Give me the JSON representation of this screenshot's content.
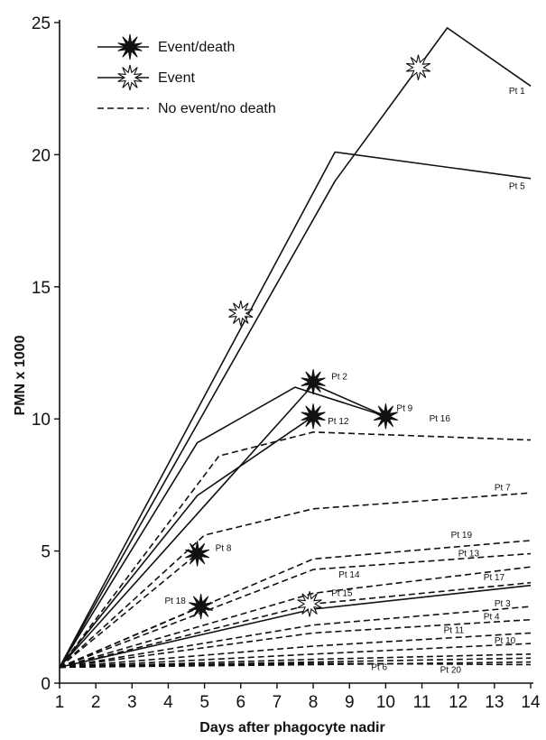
{
  "chart_data": {
    "type": "line",
    "title": "",
    "xlabel": "Days after phagocyte nadir",
    "ylabel": "PMN x 1000",
    "xlim": [
      1,
      14
    ],
    "ylim": [
      0,
      25
    ],
    "x_ticks": [
      1,
      2,
      3,
      4,
      5,
      6,
      7,
      8,
      9,
      10,
      11,
      12,
      13,
      14
    ],
    "y_ticks": [
      0,
      5,
      10,
      15,
      20,
      25
    ],
    "grid": false,
    "legend_position": "top-left",
    "legend": [
      {
        "label": "Event/death",
        "line": "solid",
        "marker": "filled-burst"
      },
      {
        "label": "Event",
        "line": "solid",
        "marker": "open-burst"
      },
      {
        "label": "No event/no death",
        "line": "dashed",
        "marker": "none"
      }
    ],
    "series": [
      {
        "name": "Pt 1",
        "style": "solid",
        "points": [
          [
            1,
            0.6
          ],
          [
            8.6,
            19.0
          ],
          [
            11.7,
            24.8
          ],
          [
            14,
            22.6
          ]
        ],
        "label_at": [
          13.4,
          22.3
        ]
      },
      {
        "name": "Pt 5",
        "style": "solid",
        "points": [
          [
            1,
            0.6
          ],
          [
            8.6,
            20.1
          ],
          [
            14,
            19.1
          ]
        ],
        "label_at": [
          13.4,
          18.7
        ]
      },
      {
        "name": "Pt 2",
        "style": "solid",
        "points": [
          [
            1,
            0.6
          ],
          [
            4.8,
            9.1
          ],
          [
            7.5,
            11.2
          ],
          [
            10,
            10.1
          ]
        ],
        "label_at": [
          8.5,
          11.5
        ]
      },
      {
        "name": "Pt 9",
        "style": "solid",
        "points": [
          [
            1,
            0.6
          ],
          [
            8,
            11.3
          ],
          [
            10,
            10.1
          ]
        ],
        "label_at": [
          10.3,
          10.3
        ]
      },
      {
        "name": "Pt 12",
        "style": "solid",
        "points": [
          [
            1,
            0.6
          ],
          [
            4.8,
            7.1
          ],
          [
            8,
            10.1
          ]
        ],
        "label_at": [
          8.4,
          9.8
        ]
      },
      {
        "name": "Pt 16",
        "style": "dashed",
        "points": [
          [
            1,
            0.6
          ],
          [
            5.4,
            8.6
          ],
          [
            8,
            9.5
          ],
          [
            14,
            9.2
          ]
        ],
        "label_at": [
          11.2,
          9.9
        ]
      },
      {
        "name": "Pt 7",
        "style": "dashed",
        "points": [
          [
            1,
            0.6
          ],
          [
            5,
            5.6
          ],
          [
            8,
            6.6
          ],
          [
            14,
            7.2
          ]
        ],
        "label_at": [
          13.0,
          7.3
        ]
      },
      {
        "name": "Pt 8",
        "style": "dashed",
        "points": [
          [
            1,
            0.6
          ],
          [
            4.8,
            4.9
          ]
        ],
        "label_at": [
          5.3,
          5.0
        ]
      },
      {
        "name": "Pt 19",
        "style": "dashed",
        "points": [
          [
            1,
            0.6
          ],
          [
            8,
            4.7
          ],
          [
            14,
            5.4
          ]
        ],
        "label_at": [
          11.8,
          5.5
        ]
      },
      {
        "name": "Pt 13",
        "style": "dashed",
        "points": [
          [
            1,
            0.6
          ],
          [
            8,
            4.3
          ],
          [
            14,
            4.9
          ]
        ],
        "label_at": [
          12.0,
          4.8
        ]
      },
      {
        "name": "Pt 14",
        "style": "dashed",
        "points": [
          [
            1,
            0.6
          ],
          [
            8,
            3.4
          ],
          [
            14,
            4.4
          ]
        ],
        "label_at": [
          8.7,
          4.0
        ]
      },
      {
        "name": "Pt 17",
        "style": "dashed",
        "points": [
          [
            1,
            0.6
          ],
          [
            8,
            3.0
          ],
          [
            14,
            3.8
          ]
        ],
        "label_at": [
          12.7,
          3.9
        ]
      },
      {
        "name": "Pt 18",
        "style": "dashed",
        "points": [
          [
            1,
            0.6
          ],
          [
            4.9,
            2.9
          ]
        ],
        "label_at": [
          3.9,
          3.0
        ]
      },
      {
        "name": "Pt 15",
        "style": "solid",
        "points": [
          [
            1,
            0.6
          ],
          [
            8,
            2.8
          ],
          [
            14,
            3.7
          ]
        ],
        "label_at": [
          8.5,
          3.3
        ]
      },
      {
        "name": "Pt 3",
        "style": "dashed",
        "points": [
          [
            1,
            0.6
          ],
          [
            8,
            2.2
          ],
          [
            14,
            2.9
          ]
        ],
        "label_at": [
          13.0,
          2.9
        ]
      },
      {
        "name": "Pt 4",
        "style": "dashed",
        "points": [
          [
            1,
            0.6
          ],
          [
            8,
            1.9
          ],
          [
            14,
            2.4
          ]
        ],
        "label_at": [
          12.7,
          2.4
        ]
      },
      {
        "name": "Pt 11",
        "style": "dashed",
        "points": [
          [
            1,
            0.6
          ],
          [
            8,
            1.4
          ],
          [
            14,
            1.9
          ]
        ],
        "label_at": [
          11.6,
          1.9
        ]
      },
      {
        "name": "Pt 10",
        "style": "dashed",
        "points": [
          [
            1,
            0.6
          ],
          [
            8,
            1.1
          ],
          [
            14,
            1.5
          ]
        ],
        "label_at": [
          13.0,
          1.5
        ]
      },
      {
        "name": "Pt 6",
        "style": "dashed",
        "points": [
          [
            1,
            0.6
          ],
          [
            8,
            0.7
          ],
          [
            14,
            0.8
          ]
        ],
        "label_at": [
          9.6,
          0.5
        ]
      },
      {
        "name": "Pt 20",
        "style": "dashed",
        "points": [
          [
            1,
            0.6
          ],
          [
            8,
            0.9
          ],
          [
            14,
            1.1
          ]
        ],
        "label_at": [
          11.5,
          0.4
        ]
      },
      {
        "name": "",
        "style": "dashed",
        "points": [
          [
            1,
            0.6
          ],
          [
            8,
            0.8
          ],
          [
            14,
            0.95
          ]
        ],
        "label_at": null
      },
      {
        "name": "",
        "style": "dashed",
        "points": [
          [
            1,
            0.6
          ],
          [
            8,
            0.75
          ],
          [
            14,
            0.7
          ]
        ],
        "label_at": null
      }
    ],
    "markers": [
      {
        "type": "open-burst",
        "x": 6.0,
        "y": 14.0
      },
      {
        "type": "open-burst",
        "x": 10.9,
        "y": 23.3
      },
      {
        "type": "open-burst",
        "x": 7.9,
        "y": 3.0
      },
      {
        "type": "filled-burst",
        "x": 8.0,
        "y": 11.4
      },
      {
        "type": "filled-burst",
        "x": 8.0,
        "y": 10.1
      },
      {
        "type": "filled-burst",
        "x": 10.0,
        "y": 10.1
      },
      {
        "type": "filled-burst",
        "x": 4.8,
        "y": 4.9
      },
      {
        "type": "filled-burst",
        "x": 4.9,
        "y": 2.9
      }
    ]
  }
}
